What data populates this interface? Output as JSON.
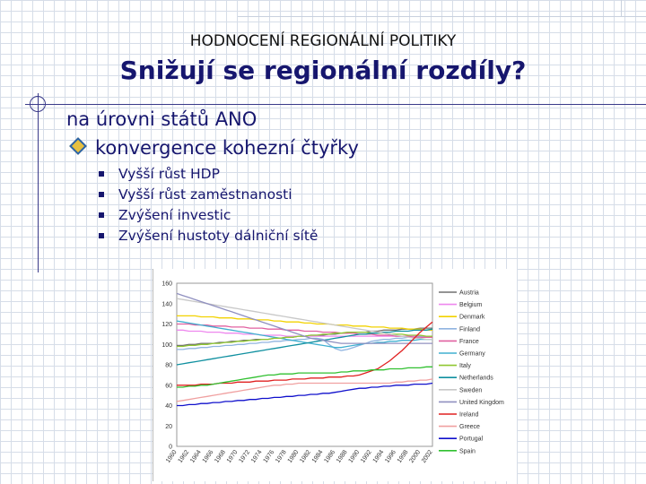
{
  "header": {
    "supertitle": "HODNOCENÍ REGIONÁLNÍ POLITIKY",
    "title": "Snižují se regionální rozdíly?"
  },
  "content": {
    "heading1": "na úrovni států ANO",
    "heading2": "konvergence kohezní čtyřky",
    "bullets": [
      "Vyšší růst HDP",
      "Vyšší růst zaměstnanosti",
      "Zvýšení investic",
      "Zvýšení hustoty dálniční sítě"
    ]
  },
  "chart_data": {
    "type": "line",
    "ylim": [
      0,
      160
    ],
    "yticks": [
      0,
      20,
      40,
      60,
      80,
      100,
      120,
      140,
      160
    ],
    "x": [
      1960,
      1961,
      1962,
      1963,
      1964,
      1965,
      1966,
      1967,
      1968,
      1969,
      1970,
      1971,
      1972,
      1973,
      1974,
      1975,
      1976,
      1977,
      1978,
      1979,
      1980,
      1981,
      1982,
      1983,
      1984,
      1985,
      1986,
      1987,
      1988,
      1989,
      1990,
      1991,
      1992,
      1993,
      1994,
      1995,
      1996,
      1997,
      1998,
      1999,
      2000,
      2001,
      2002
    ],
    "xtick_labels": [
      "1960",
      "1962",
      "1964",
      "1966",
      "1968",
      "1970",
      "1972",
      "1974",
      "1976",
      "1978",
      "1980",
      "1982",
      "1984",
      "1986",
      "1988",
      "1990",
      "1992",
      "1994",
      "1996",
      "1998",
      "2000",
      "2002"
    ],
    "series": [
      {
        "name": "Austria",
        "color": "#707070",
        "values": [
          99,
          99,
          100,
          100,
          101,
          101,
          101,
          102,
          102,
          103,
          103,
          104,
          104,
          105,
          105,
          105,
          106,
          106,
          107,
          107,
          108,
          108,
          109,
          109,
          109,
          110,
          110,
          111,
          111,
          112,
          112,
          112,
          113,
          113,
          114,
          114,
          114,
          115,
          115,
          115,
          116,
          116,
          116
        ]
      },
      {
        "name": "Belgium",
        "color": "#ee88ee",
        "values": [
          114,
          114,
          113,
          113,
          113,
          112,
          112,
          112,
          111,
          111,
          111,
          110,
          110,
          110,
          109,
          109,
          109,
          109,
          108,
          108,
          108,
          108,
          108,
          108,
          108,
          108,
          108,
          108,
          108,
          108,
          108,
          108,
          108,
          108,
          108,
          108,
          108,
          108,
          108,
          108,
          108,
          108,
          108
        ]
      },
      {
        "name": "Denmark",
        "color": "#f2d200",
        "values": [
          128,
          128,
          128,
          128,
          127,
          127,
          127,
          126,
          126,
          126,
          125,
          125,
          125,
          124,
          124,
          124,
          123,
          123,
          122,
          122,
          122,
          121,
          121,
          120,
          120,
          120,
          119,
          119,
          119,
          118,
          118,
          118,
          117,
          117,
          117,
          116,
          116,
          116,
          115,
          115,
          115,
          114,
          114
        ]
      },
      {
        "name": "Finland",
        "color": "#90b4e0",
        "values": [
          95,
          95,
          96,
          96,
          97,
          97,
          98,
          98,
          99,
          99,
          100,
          100,
          101,
          101,
          102,
          102,
          103,
          103,
          104,
          104,
          105,
          105,
          106,
          106,
          105,
          100,
          96,
          94,
          95,
          97,
          99,
          101,
          103,
          104,
          105,
          105,
          106,
          106,
          107,
          107,
          108,
          108,
          108
        ]
      },
      {
        "name": "France",
        "color": "#e060a0",
        "values": [
          120,
          120,
          120,
          119,
          119,
          119,
          118,
          118,
          118,
          117,
          117,
          117,
          116,
          116,
          116,
          115,
          115,
          115,
          114,
          114,
          114,
          113,
          113,
          113,
          112,
          112,
          112,
          111,
          111,
          111,
          110,
          110,
          110,
          109,
          109,
          109,
          108,
          108,
          108,
          107,
          107,
          107,
          107
        ]
      },
      {
        "name": "Germany",
        "color": "#40b0d0",
        "values": [
          123,
          122,
          121,
          120,
          119,
          118,
          117,
          116,
          115,
          114,
          113,
          112,
          111,
          110,
          109,
          108,
          107,
          106,
          105,
          104,
          103,
          102,
          101,
          100,
          99,
          98,
          97,
          97,
          98,
          99,
          100,
          101,
          101,
          102,
          102,
          103,
          103,
          104,
          104,
          104,
          105,
          105,
          105
        ]
      },
      {
        "name": "Italy",
        "color": "#90c830",
        "values": [
          98,
          98,
          99,
          99,
          100,
          100,
          101,
          101,
          102,
          102,
          103,
          103,
          104,
          104,
          105,
          105,
          106,
          106,
          107,
          107,
          108,
          108,
          109,
          109,
          110,
          110,
          111,
          111,
          112,
          112,
          112,
          112,
          111,
          111,
          111,
          110,
          110,
          110,
          109,
          109,
          109,
          108,
          108
        ]
      },
      {
        "name": "Netherlands",
        "color": "#1090a0",
        "values": [
          80,
          81,
          82,
          83,
          84,
          85,
          86,
          87,
          88,
          89,
          90,
          91,
          92,
          93,
          94,
          95,
          96,
          97,
          98,
          99,
          100,
          101,
          102,
          103,
          104,
          105,
          106,
          107,
          108,
          109,
          110,
          110,
          111,
          111,
          112,
          112,
          113,
          113,
          113,
          114,
          114,
          114,
          115
        ]
      },
      {
        "name": "Sweden",
        "color": "#c8c8c8",
        "values": [
          145,
          144,
          143,
          142,
          141,
          140,
          139,
          138,
          137,
          136,
          135,
          134,
          133,
          132,
          131,
          130,
          129,
          128,
          127,
          126,
          125,
          124,
          123,
          122,
          121,
          120,
          119,
          118,
          117,
          116,
          115,
          114,
          113,
          112,
          111,
          110,
          109,
          108,
          107,
          106,
          106,
          105,
          105
        ]
      },
      {
        "name": "United Kingdom",
        "color": "#9090c0",
        "values": [
          150,
          148,
          146,
          144,
          142,
          140,
          138,
          136,
          134,
          132,
          130,
          128,
          126,
          124,
          122,
          120,
          118,
          116,
          114,
          112,
          110,
          108,
          106,
          105,
          104,
          103,
          102,
          101,
          101,
          101,
          101,
          101,
          101,
          101,
          101,
          101,
          101,
          101,
          101,
          101,
          101,
          101,
          101
        ]
      },
      {
        "name": "Ireland",
        "color": "#e02020",
        "values": [
          60,
          60,
          60,
          60,
          61,
          61,
          61,
          62,
          62,
          62,
          63,
          63,
          63,
          64,
          64,
          64,
          65,
          65,
          65,
          66,
          66,
          66,
          67,
          67,
          67,
          68,
          68,
          68,
          69,
          69,
          70,
          72,
          74,
          76,
          80,
          84,
          89,
          94,
          100,
          106,
          112,
          117,
          122
        ]
      },
      {
        "name": "Greece",
        "color": "#f0a0a0",
        "values": [
          44,
          45,
          46,
          47,
          48,
          49,
          50,
          51,
          52,
          53,
          54,
          55,
          56,
          57,
          58,
          59,
          60,
          60,
          61,
          61,
          62,
          62,
          62,
          62,
          62,
          62,
          62,
          62,
          62,
          62,
          62,
          62,
          62,
          62,
          62,
          62,
          63,
          63,
          64,
          64,
          65,
          65,
          66
        ]
      },
      {
        "name": "Portugal",
        "color": "#1010cc",
        "values": [
          40,
          40,
          41,
          41,
          42,
          42,
          43,
          43,
          44,
          44,
          45,
          45,
          46,
          46,
          47,
          47,
          48,
          48,
          49,
          49,
          50,
          50,
          51,
          51,
          52,
          52,
          53,
          54,
          55,
          56,
          57,
          57,
          58,
          58,
          59,
          59,
          60,
          60,
          60,
          61,
          61,
          61,
          62
        ]
      },
      {
        "name": "Spain",
        "color": "#30c030",
        "values": [
          58,
          58,
          59,
          59,
          60,
          60,
          61,
          62,
          63,
          64,
          65,
          66,
          67,
          68,
          69,
          70,
          70,
          71,
          71,
          71,
          72,
          72,
          72,
          72,
          72,
          72,
          72,
          73,
          73,
          74,
          74,
          74,
          75,
          75,
          75,
          76,
          76,
          76,
          77,
          77,
          77,
          78,
          78
        ]
      }
    ]
  }
}
